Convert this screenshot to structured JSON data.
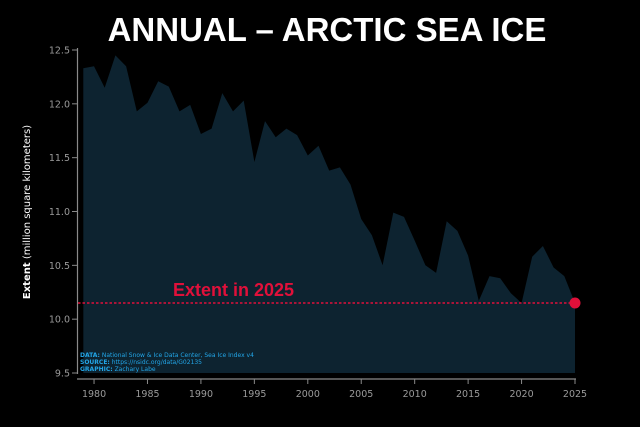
{
  "chart_data": {
    "type": "area",
    "title": "ANNUAL – ARCTIC SEA ICE",
    "ylabel_bold": "Extent",
    "ylabel_rest": " (million square kilometers)",
    "xlabel": "",
    "x": [
      1979,
      1980,
      1981,
      1982,
      1983,
      1984,
      1985,
      1986,
      1987,
      1988,
      1989,
      1990,
      1991,
      1992,
      1993,
      1994,
      1995,
      1996,
      1997,
      1998,
      1999,
      2000,
      2001,
      2002,
      2003,
      2004,
      2005,
      2006,
      2007,
      2008,
      2009,
      2010,
      2011,
      2012,
      2013,
      2014,
      2015,
      2016,
      2017,
      2018,
      2019,
      2020,
      2021,
      2022,
      2023,
      2024,
      2025
    ],
    "series": [
      {
        "values": [
          12.33,
          12.35,
          12.15,
          12.45,
          12.35,
          11.93,
          12.01,
          12.21,
          12.16,
          11.93,
          11.99,
          11.72,
          11.77,
          12.1,
          11.93,
          12.03,
          11.46,
          11.84,
          11.69,
          11.77,
          11.71,
          11.52,
          11.61,
          11.38,
          11.41,
          11.25,
          10.93,
          10.78,
          10.5,
          10.99,
          10.95,
          10.73,
          10.5,
          10.43,
          10.91,
          10.82,
          10.59,
          10.17,
          10.4,
          10.38,
          10.24,
          10.15,
          10.58,
          10.68,
          10.48,
          10.4,
          10.15
        ],
        "color": "#0d2330"
      }
    ],
    "xticks": [
      "1980",
      "1985",
      "1990",
      "1995",
      "2000",
      "2005",
      "2010",
      "2015",
      "2020",
      "2025"
    ],
    "yticks": [
      "9.5",
      "10.0",
      "10.5",
      "11.0",
      "11.5",
      "12.0",
      "12.5"
    ],
    "xlim": [
      1978.5,
      2025
    ],
    "ylim": [
      9.5,
      12.5
    ],
    "grid": false,
    "annotation": {
      "text": "Extent in 2025",
      "value": 10.15,
      "color": "#e0103a"
    },
    "credits": [
      {
        "key": "DATA:",
        "text": " National Snow & Ice Data Center, Sea Ice Index v4"
      },
      {
        "key": "SOURCE:",
        "text": " https://nsidc.org/data/G02135"
      },
      {
        "key": "GRAPHIC:",
        "text": " Zachary Labe"
      }
    ],
    "colors": {
      "background": "#000000",
      "area": "#0d2330",
      "axis": "#8a8a8a",
      "highlight": "#e0103a",
      "credit": "#22a6e8"
    }
  }
}
